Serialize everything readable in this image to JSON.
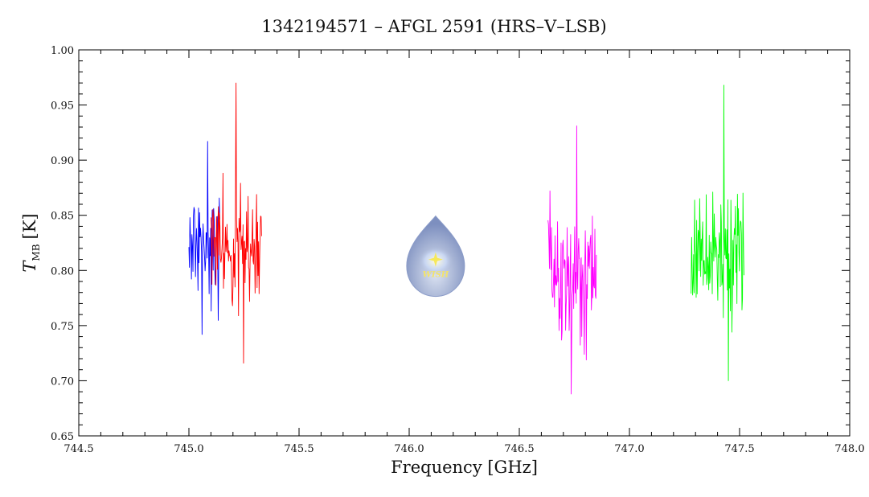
{
  "chart_data": {
    "type": "line",
    "title": "1342194571 – AFGL 2591 (HRS–V–LSB)",
    "xlabel": "Frequency [GHz]",
    "ylabel_main": "T",
    "ylabel_sub": "MB",
    "ylabel_unit": "[K]",
    "xlim": [
      744.5,
      748.0
    ],
    "ylim": [
      0.65,
      1.0
    ],
    "grid": false,
    "x_ticks": [
      744.5,
      745.0,
      745.5,
      746.0,
      746.5,
      747.0,
      747.5,
      748.0
    ],
    "x_tick_labels": [
      "744.5",
      "745.0",
      "745.5",
      "746.0",
      "746.5",
      "747.0",
      "747.5",
      "748.0"
    ],
    "y_ticks": [
      0.65,
      0.7,
      0.75,
      0.8,
      0.85,
      0.9,
      0.95,
      1.0
    ],
    "y_tick_labels": [
      "0.65",
      "0.70",
      "0.75",
      "0.80",
      "0.85",
      "0.90",
      "0.95",
      "1.00"
    ],
    "series": [
      {
        "color": "#0000ff",
        "x_start": 745.0,
        "x_end": 745.14,
        "mean": 0.823,
        "amplitude": 0.045,
        "max": 0.917,
        "min": 0.742,
        "seed": 11
      },
      {
        "color": "#ff0000",
        "x_start": 745.1,
        "x_end": 745.33,
        "mean": 0.822,
        "amplitude": 0.048,
        "max": 0.97,
        "min": 0.716,
        "seed": 23
      },
      {
        "color": "#ff00ff",
        "x_start": 746.63,
        "x_end": 746.85,
        "mean": 0.795,
        "amplitude": 0.055,
        "max": 0.931,
        "min": 0.688,
        "seed": 37
      },
      {
        "color": "#00ff00",
        "x_start": 747.28,
        "x_end": 747.52,
        "mean": 0.815,
        "amplitude": 0.048,
        "max": 0.968,
        "min": 0.7,
        "seed": 53
      }
    ],
    "logo": {
      "text": "WISH",
      "x": 746.12,
      "y": 0.81
    }
  }
}
